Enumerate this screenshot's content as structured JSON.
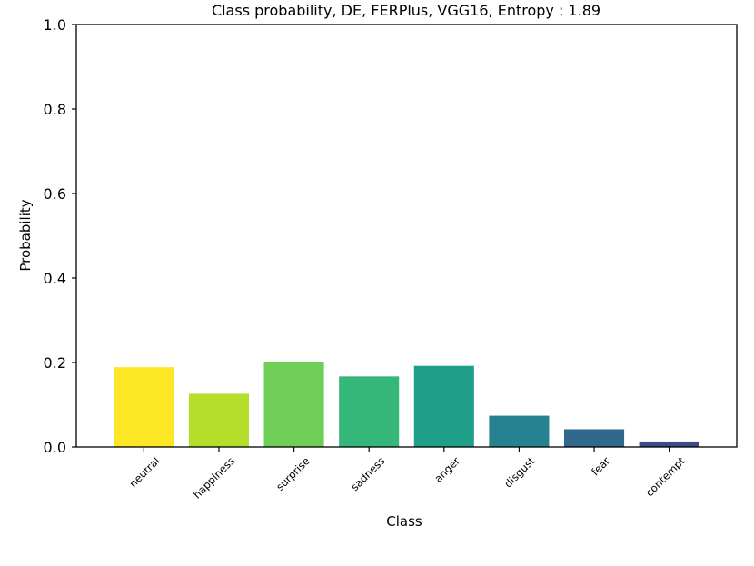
{
  "chart_data": {
    "type": "bar",
    "title": "Class probability, DE, FERPlus, VGG16, Entropy : 1.89",
    "xlabel": "Class",
    "ylabel": "Probability",
    "ylim": [
      0.0,
      1.0
    ],
    "yticks": [
      "0.0",
      "0.2",
      "0.4",
      "0.6",
      "0.8",
      "1.0"
    ],
    "ytick_values": [
      0.0,
      0.2,
      0.4,
      0.6,
      0.8,
      1.0
    ],
    "grid": false,
    "categories": [
      "neutral",
      "happiness",
      "surprise",
      "sadness",
      "anger",
      "disgust",
      "fear",
      "contempt"
    ],
    "values": [
      0.189,
      0.126,
      0.201,
      0.167,
      0.192,
      0.074,
      0.042,
      0.013
    ],
    "colors": [
      "#fde725",
      "#b5de2b",
      "#6ece58",
      "#35b779",
      "#1f9e89",
      "#26828e",
      "#31688e",
      "#3e4989"
    ]
  }
}
